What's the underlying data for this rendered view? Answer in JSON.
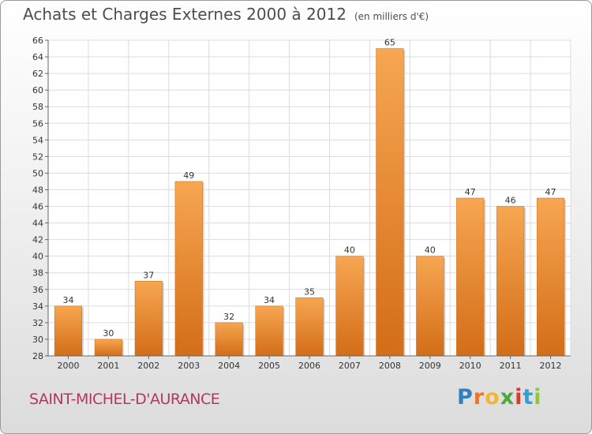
{
  "chart_data": {
    "type": "bar",
    "title": "Achats et Charges Externes 2000 à 2012",
    "subtitle": "(en milliers d'€)",
    "categories": [
      "2000",
      "2001",
      "2002",
      "2003",
      "2004",
      "2005",
      "2006",
      "2007",
      "2008",
      "2009",
      "2010",
      "2011",
      "2012"
    ],
    "values": [
      34,
      30,
      37,
      49,
      32,
      34,
      35,
      40,
      65,
      40,
      47,
      46,
      47
    ],
    "ylim": [
      28,
      66
    ],
    "ytick_step": 2,
    "grid": true,
    "bar_color": "#f0912f"
  },
  "footer": {
    "commune": "SAINT-MICHEL-D'AURANCE",
    "logo_letters": [
      "P",
      "r",
      "o",
      "x",
      "i",
      "t",
      "i"
    ],
    "logo_colors": [
      "#2f7fc1",
      "#e8762b",
      "#f2b632",
      "#4aa83f",
      "#d63c2f",
      "#2f9fd8",
      "#8dc63f"
    ]
  }
}
